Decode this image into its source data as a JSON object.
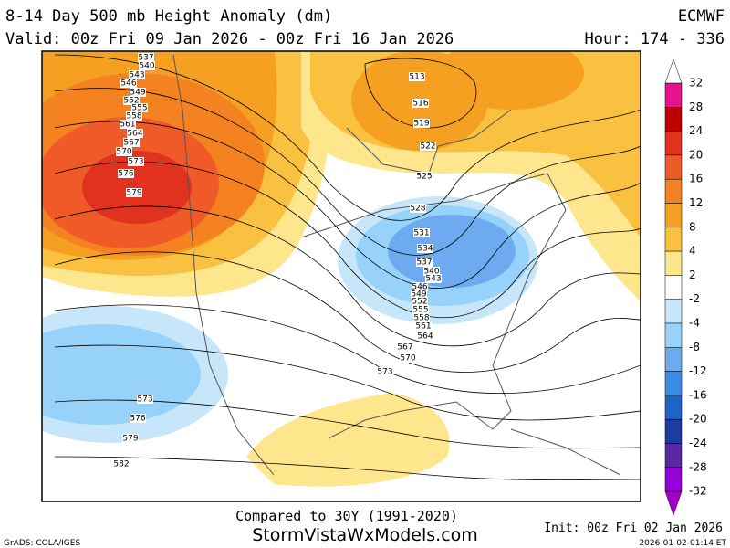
{
  "header": {
    "title": "8-14 Day 500 mb Height Anomaly (dm)",
    "model": "ECMWF",
    "valid": "Valid: 00z Fri 09 Jan 2026 - 00z Fri 16 Jan 2026",
    "hour": "Hour: 174 - 336"
  },
  "colorbar": {
    "levels": [
      32,
      28,
      24,
      20,
      16,
      12,
      8,
      4,
      2,
      -2,
      -4,
      -8,
      -12,
      -16,
      -20,
      -24,
      -28,
      -32
    ],
    "colors": [
      "#e8128c",
      "#c00000",
      "#e0321e",
      "#f05a28",
      "#f58220",
      "#f5a020",
      "#fac040",
      "#fde68c",
      "#ffffff",
      "#c8e6fa",
      "#96d2fa",
      "#6eaaf0",
      "#3c8ce6",
      "#1e64c8",
      "#1e3ca0",
      "#5a28a0",
      "#9600dc"
    ],
    "over_color": "#ffffff",
    "under_color": "#a000c8"
  },
  "contour_labels": {
    "west": [
      537,
      540,
      543,
      546,
      549,
      552,
      555,
      558,
      561,
      564,
      567,
      570,
      573,
      576,
      579
    ],
    "canada": [
      513,
      516,
      519,
      522,
      525,
      528
    ],
    "east": [
      531,
      534,
      537,
      540,
      543,
      546,
      549,
      552,
      555,
      558,
      561,
      564,
      567,
      570,
      573
    ],
    "pacific": [
      573,
      576,
      579,
      582
    ]
  },
  "footer": {
    "comparison": "Compared to 30Y (1991-2020)",
    "site": "StormVistaWxModels.com",
    "init": "Init: 00z Fri 02 Jan 2026",
    "credit": "GrADS: COLA/IGES",
    "timestamp": "2026-01-02-01:14 ET"
  }
}
